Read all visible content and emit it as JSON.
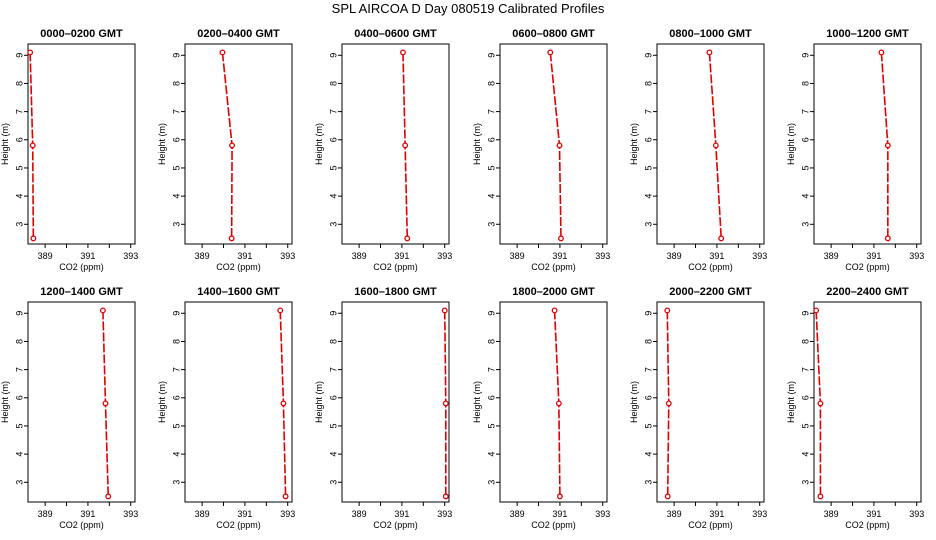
{
  "title": "SPL AIRCOA D  Day 080519  Calibrated Profiles",
  "style": {
    "series_color": "#e00000",
    "axis_color": "#000000"
  },
  "chart_data": [
    {
      "type": "line",
      "title": "0000–0200 GMT",
      "xlabel": "CO2 (ppm)",
      "ylabel": "Height (m)",
      "xlim": [
        388.2,
        393.2
      ],
      "ylim": [
        2.3,
        9.4
      ],
      "xticks": [
        389,
        391,
        393
      ],
      "yticks": [
        3,
        4,
        5,
        6,
        7,
        8,
        9
      ],
      "series": [
        {
          "x": [
            388.3,
            388.42,
            388.45
          ],
          "y": [
            9.1,
            5.8,
            2.5
          ]
        }
      ]
    },
    {
      "type": "line",
      "title": "0200–0400 GMT",
      "xlabel": "CO2 (ppm)",
      "ylabel": "Height (m)",
      "xlim": [
        388.2,
        393.2
      ],
      "ylim": [
        2.3,
        9.4
      ],
      "xticks": [
        389,
        391,
        393
      ],
      "yticks": [
        3,
        4,
        5,
        6,
        7,
        8,
        9
      ],
      "series": [
        {
          "x": [
            389.95,
            390.4,
            390.38
          ],
          "y": [
            9.1,
            5.8,
            2.5
          ]
        }
      ]
    },
    {
      "type": "line",
      "title": "0400–0600 GMT",
      "xlabel": "CO2 (ppm)",
      "ylabel": "Height (m)",
      "xlim": [
        388.2,
        393.2
      ],
      "ylim": [
        2.3,
        9.4
      ],
      "xticks": [
        389,
        391,
        393
      ],
      "yticks": [
        3,
        4,
        5,
        6,
        7,
        8,
        9
      ],
      "series": [
        {
          "x": [
            391.05,
            391.15,
            391.25
          ],
          "y": [
            9.1,
            5.8,
            2.5
          ]
        }
      ]
    },
    {
      "type": "line",
      "title": "0600–0800 GMT",
      "xlabel": "CO2 (ppm)",
      "ylabel": "Height (m)",
      "xlim": [
        388.2,
        393.2
      ],
      "ylim": [
        2.3,
        9.4
      ],
      "xticks": [
        389,
        391,
        393
      ],
      "yticks": [
        3,
        4,
        5,
        6,
        7,
        8,
        9
      ],
      "series": [
        {
          "x": [
            390.55,
            390.98,
            391.05
          ],
          "y": [
            9.1,
            5.8,
            2.5
          ]
        }
      ]
    },
    {
      "type": "line",
      "title": "0800–1000 GMT",
      "xlabel": "CO2 (ppm)",
      "ylabel": "Height (m)",
      "xlim": [
        388.2,
        393.2
      ],
      "ylim": [
        2.3,
        9.4
      ],
      "xticks": [
        389,
        391,
        393
      ],
      "yticks": [
        3,
        4,
        5,
        6,
        7,
        8,
        9
      ],
      "series": [
        {
          "x": [
            390.65,
            390.95,
            391.2
          ],
          "y": [
            9.1,
            5.8,
            2.5
          ]
        }
      ]
    },
    {
      "type": "line",
      "title": "1000–1200 GMT",
      "xlabel": "CO2 (ppm)",
      "ylabel": "Height (m)",
      "xlim": [
        388.2,
        393.2
      ],
      "ylim": [
        2.3,
        9.4
      ],
      "xticks": [
        389,
        391,
        393
      ],
      "yticks": [
        3,
        4,
        5,
        6,
        7,
        8,
        9
      ],
      "series": [
        {
          "x": [
            391.35,
            391.65,
            391.65
          ],
          "y": [
            9.1,
            5.8,
            2.5
          ]
        }
      ]
    },
    {
      "type": "line",
      "title": "1200–1400 GMT",
      "xlabel": "CO2 (ppm)",
      "ylabel": "Height (m)",
      "xlim": [
        388.2,
        393.2
      ],
      "ylim": [
        2.3,
        9.4
      ],
      "xticks": [
        389,
        391,
        393
      ],
      "yticks": [
        3,
        4,
        5,
        6,
        7,
        8,
        9
      ],
      "series": [
        {
          "x": [
            391.7,
            391.82,
            391.95
          ],
          "y": [
            9.1,
            5.8,
            2.5
          ]
        }
      ]
    },
    {
      "type": "line",
      "title": "1400–1600 GMT",
      "xlabel": "CO2 (ppm)",
      "ylabel": "Height (m)",
      "xlim": [
        388.2,
        393.2
      ],
      "ylim": [
        2.3,
        9.4
      ],
      "xticks": [
        389,
        391,
        393
      ],
      "yticks": [
        3,
        4,
        5,
        6,
        7,
        8,
        9
      ],
      "series": [
        {
          "x": [
            392.65,
            392.8,
            392.9
          ],
          "y": [
            9.1,
            5.8,
            2.5
          ]
        }
      ]
    },
    {
      "type": "line",
      "title": "1600–1800 GMT",
      "xlabel": "CO2 (ppm)",
      "ylabel": "Height (m)",
      "xlim": [
        388.2,
        393.2
      ],
      "ylim": [
        2.3,
        9.4
      ],
      "xticks": [
        389,
        391,
        393
      ],
      "yticks": [
        3,
        4,
        5,
        6,
        7,
        8,
        9
      ],
      "series": [
        {
          "x": [
            393.0,
            393.05,
            393.05
          ],
          "y": [
            9.1,
            5.8,
            2.5
          ]
        }
      ]
    },
    {
      "type": "line",
      "title": "1800–2000 GMT",
      "xlabel": "CO2 (ppm)",
      "ylabel": "Height (m)",
      "xlim": [
        388.2,
        393.2
      ],
      "ylim": [
        2.3,
        9.4
      ],
      "xticks": [
        389,
        391,
        393
      ],
      "yticks": [
        3,
        4,
        5,
        6,
        7,
        8,
        9
      ],
      "series": [
        {
          "x": [
            390.75,
            390.95,
            391.0
          ],
          "y": [
            9.1,
            5.8,
            2.5
          ]
        }
      ]
    },
    {
      "type": "line",
      "title": "2000–2200 GMT",
      "xlabel": "CO2 (ppm)",
      "ylabel": "Height (m)",
      "xlim": [
        388.2,
        393.2
      ],
      "ylim": [
        2.3,
        9.4
      ],
      "xticks": [
        389,
        391,
        393
      ],
      "yticks": [
        3,
        4,
        5,
        6,
        7,
        8,
        9
      ],
      "series": [
        {
          "x": [
            388.68,
            388.75,
            388.7
          ],
          "y": [
            9.1,
            5.8,
            2.5
          ]
        }
      ]
    },
    {
      "type": "line",
      "title": "2200–2400 GMT",
      "xlabel": "CO2 (ppm)",
      "ylabel": "Height (m)",
      "xlim": [
        388.2,
        393.2
      ],
      "ylim": [
        2.3,
        9.4
      ],
      "xticks": [
        389,
        391,
        393
      ],
      "yticks": [
        3,
        4,
        5,
        6,
        7,
        8,
        9
      ],
      "series": [
        {
          "x": [
            388.3,
            388.5,
            388.5
          ],
          "y": [
            9.1,
            5.8,
            2.5
          ]
        }
      ]
    }
  ]
}
